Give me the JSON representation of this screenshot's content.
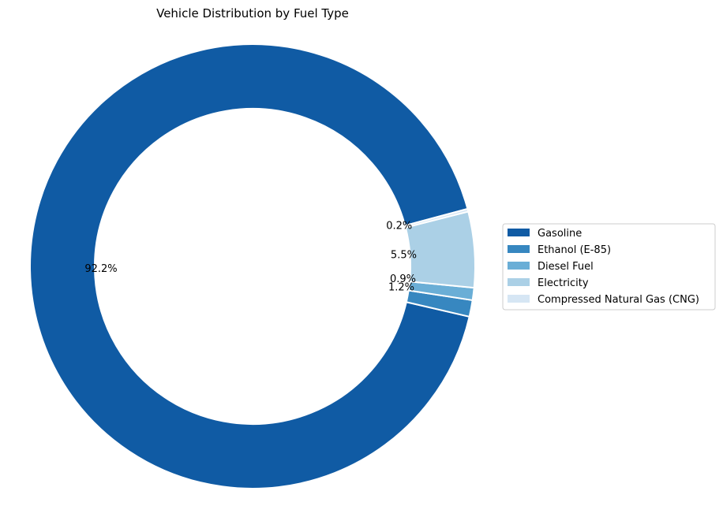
{
  "chart_data": {
    "type": "pie",
    "style": "donut",
    "title": "Vehicle Distribution by Fuel Type",
    "slices": [
      {
        "label": "Gasoline",
        "value": 92.2,
        "pct_label": "92.2%",
        "color": "#105ba4"
      },
      {
        "label": "Ethanol (E-85)",
        "value": 1.2,
        "pct_label": "1.2%",
        "color": "#3787c0"
      },
      {
        "label": "Diesel Fuel",
        "value": 0.9,
        "pct_label": "0.9%",
        "color": "#6aaed6"
      },
      {
        "label": "Electricity",
        "value": 5.5,
        "pct_label": "5.5%",
        "color": "#abd0e6"
      },
      {
        "label": "Compressed Natural Gas (CNG)",
        "value": 0.2,
        "pct_label": "0.2%",
        "color": "#d6e6f4"
      }
    ],
    "legend_position": "right"
  }
}
